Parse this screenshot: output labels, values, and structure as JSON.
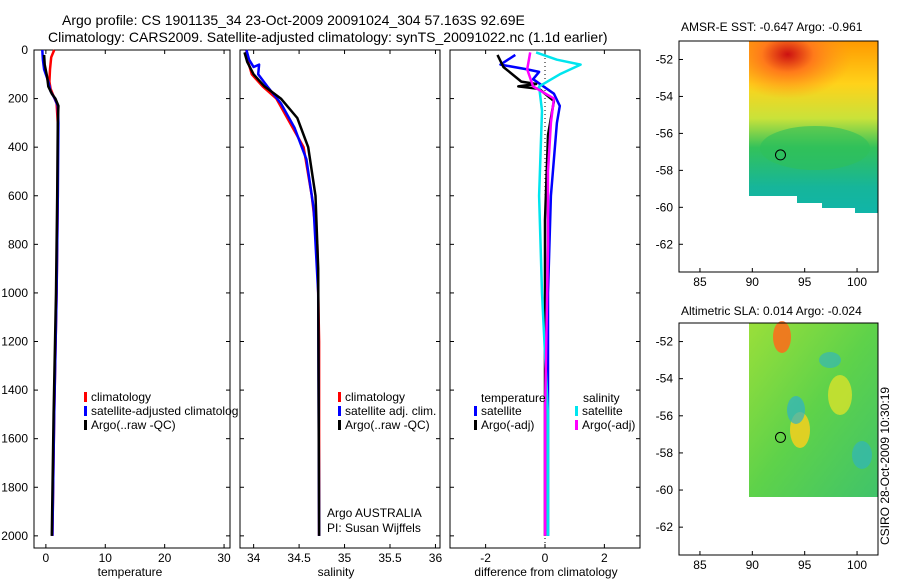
{
  "header": {
    "line1": "Argo profile: CS 1901135_34 23-Oct-2009 20091024_304 57.163S 92.69E",
    "line2": "Climatology: CARS2009. Satellite-adjusted climatology: synTS_20091022.nc (1.1d earlier)"
  },
  "side_text": "CSIRO 28-Oct-2009 10:30:19",
  "colors": {
    "climatology": "#ff0000",
    "satellite": "#0000ff",
    "argo": "#000000",
    "sal_satellite": "#00e5ee",
    "sal_argo": "#ff00ff",
    "axis": "#000000"
  },
  "chart_data": [
    {
      "type": "line",
      "panel": "temperature",
      "xlabel": "temperature",
      "xlim": [
        -2,
        31
      ],
      "ylim": [
        2050,
        0
      ],
      "xticks": [
        0,
        10,
        20,
        30
      ],
      "yticks": [
        0,
        200,
        400,
        600,
        800,
        1000,
        1200,
        1400,
        1600,
        1800,
        2000
      ],
      "legend_position": "lower-middle",
      "legend": [
        "climatology",
        "satellite-adjusted climatolog",
        "Argo(..raw -QC)"
      ],
      "series": [
        {
          "name": "climatology",
          "color": "climatology",
          "points": [
            [
              1.4,
              0
            ],
            [
              0.9,
              30
            ],
            [
              0.7,
              80
            ],
            [
              0.6,
              130
            ],
            [
              0.8,
              160
            ],
            [
              1.3,
              190
            ],
            [
              1.8,
              220
            ],
            [
              2.0,
              300
            ],
            [
              2.0,
              600
            ],
            [
              1.8,
              1000
            ],
            [
              1.4,
              1500
            ],
            [
              1.1,
              2000
            ]
          ]
        },
        {
          "name": "satellite-adjusted climatology",
          "color": "satellite",
          "points": [
            [
              -0.6,
              0
            ],
            [
              -0.5,
              40
            ],
            [
              -0.3,
              80
            ],
            [
              0.4,
              130
            ],
            [
              0.8,
              170
            ],
            [
              1.5,
              200
            ],
            [
              2.0,
              230
            ],
            [
              2.1,
              300
            ],
            [
              2.0,
              600
            ],
            [
              1.8,
              1000
            ],
            [
              1.4,
              1500
            ],
            [
              1.1,
              2000
            ]
          ]
        },
        {
          "name": "Argo(..raw -QC)",
          "color": "argo",
          "points": [
            [
              -0.3,
              20
            ],
            [
              -0.2,
              60
            ],
            [
              0.2,
              110
            ],
            [
              0.4,
              150
            ],
            [
              1.0,
              180
            ],
            [
              1.6,
              200
            ],
            [
              2.1,
              230
            ],
            [
              2.0,
              300
            ],
            [
              1.9,
              600
            ],
            [
              1.7,
              1000
            ],
            [
              1.3,
              1500
            ],
            [
              1.0,
              2000
            ]
          ]
        }
      ]
    },
    {
      "type": "line",
      "panel": "salinity",
      "xlabel": "salinity",
      "xlim": [
        33.85,
        36.05
      ],
      "ylim": [
        2050,
        0
      ],
      "xticks": [
        34,
        34.5,
        35,
        35.5,
        36
      ],
      "legend_position": "lower-middle",
      "legend": [
        "climatology",
        "satellite adj. clim.",
        "Argo(..raw -QC)"
      ],
      "annotation": [
        "Argo AUSTRALIA",
        "PI: Susan Wijffels"
      ],
      "series": [
        {
          "name": "climatology",
          "color": "climatology",
          "points": [
            [
              33.92,
              0
            ],
            [
              33.94,
              50
            ],
            [
              33.98,
              100
            ],
            [
              34.1,
              150
            ],
            [
              34.25,
              200
            ],
            [
              34.4,
              300
            ],
            [
              34.55,
              400
            ],
            [
              34.64,
              600
            ],
            [
              34.7,
              800
            ],
            [
              34.72,
              1200
            ],
            [
              34.72,
              2000
            ]
          ]
        },
        {
          "name": "satellite adj. clim.",
          "color": "satellite",
          "points": [
            [
              33.92,
              0
            ],
            [
              33.95,
              40
            ],
            [
              34.0,
              70
            ],
            [
              34.06,
              60
            ],
            [
              34.05,
              100
            ],
            [
              34.15,
              150
            ],
            [
              34.3,
              220
            ],
            [
              34.45,
              320
            ],
            [
              34.58,
              450
            ],
            [
              34.66,
              650
            ],
            [
              34.71,
              1000
            ],
            [
              34.72,
              2000
            ]
          ]
        },
        {
          "name": "Argo(..raw -QC)",
          "color": "argo",
          "points": [
            [
              33.9,
              10
            ],
            [
              33.93,
              50
            ],
            [
              34.0,
              100
            ],
            [
              34.12,
              150
            ],
            [
              34.3,
              200
            ],
            [
              34.48,
              280
            ],
            [
              34.6,
              400
            ],
            [
              34.68,
              600
            ],
            [
              34.71,
              900
            ],
            [
              34.72,
              2000
            ]
          ]
        }
      ]
    },
    {
      "type": "line",
      "panel": "difference",
      "xlabel": "difference from climatology",
      "xlim": [
        -3.2,
        3.2
      ],
      "ylim": [
        2050,
        0
      ],
      "xticks": [
        -2,
        0,
        2
      ],
      "legend_position": "lower-middle",
      "legend_headers": [
        "temperature",
        "salinity"
      ],
      "legend": [
        "satellite",
        "Argo(-adj)",
        "satellite",
        "Argo(-adj)"
      ],
      "series": [
        {
          "name": "temperature satellite",
          "color": "satellite",
          "points": [
            [
              -1.0,
              20
            ],
            [
              -1.5,
              60
            ],
            [
              -0.6,
              80
            ],
            [
              -0.2,
              90
            ],
            [
              -0.4,
              120
            ],
            [
              0.3,
              180
            ],
            [
              0.5,
              230
            ],
            [
              0.4,
              300
            ],
            [
              0.2,
              600
            ],
            [
              0.1,
              1000
            ],
            [
              0.1,
              2000
            ]
          ]
        },
        {
          "name": "temperature Argo(-adj)",
          "color": "argo",
          "points": [
            [
              -1.6,
              20
            ],
            [
              -1.4,
              70
            ],
            [
              -0.8,
              130
            ],
            [
              -0.3,
              140
            ],
            [
              -0.9,
              150
            ],
            [
              -0.2,
              160
            ],
            [
              0.3,
              210
            ],
            [
              0.1,
              350
            ],
            [
              0.0,
              700
            ],
            [
              0.0,
              1500
            ],
            [
              0.0,
              2000
            ]
          ]
        },
        {
          "name": "salinity satellite",
          "color": "sal_satellite",
          "points": [
            [
              -0.3,
              10
            ],
            [
              0.4,
              40
            ],
            [
              1.2,
              60
            ],
            [
              0.5,
              100
            ],
            [
              -0.2,
              150
            ],
            [
              -0.1,
              250
            ],
            [
              -0.2,
              600
            ],
            [
              -0.1,
              1000
            ],
            [
              0.1,
              1500
            ],
            [
              0.1,
              2000
            ]
          ]
        },
        {
          "name": "salinity Argo(-adj)",
          "color": "sal_argo",
          "points": [
            [
              -0.5,
              10
            ],
            [
              -0.6,
              80
            ],
            [
              -0.4,
              150
            ],
            [
              0.3,
              200
            ],
            [
              0.2,
              300
            ],
            [
              0.1,
              500
            ],
            [
              0.1,
              800
            ],
            [
              0.0,
              1500
            ],
            [
              0.0,
              2000
            ]
          ]
        }
      ]
    },
    {
      "type": "heatmap",
      "panel": "sst_map",
      "title": "AMSR-E SST: -0.647 Argo: -0.961",
      "xlim": [
        83,
        102
      ],
      "ylim": [
        -63.5,
        -51
      ],
      "xticks": [
        85,
        90,
        95,
        100
      ],
      "yticks": [
        -52,
        -54,
        -56,
        -58,
        -60,
        -62
      ],
      "marker": {
        "lon": 92.69,
        "lat": -57.163
      }
    },
    {
      "type": "heatmap",
      "panel": "sla_map",
      "title": "Altimetric SLA: 0.014 Argo: -0.024",
      "xlim": [
        83,
        102
      ],
      "ylim": [
        -63.5,
        -51
      ],
      "xticks": [
        85,
        90,
        95,
        100
      ],
      "yticks": [
        -52,
        -54,
        -56,
        -58,
        -60,
        -62
      ],
      "marker": {
        "lon": 92.69,
        "lat": -57.163
      }
    }
  ]
}
